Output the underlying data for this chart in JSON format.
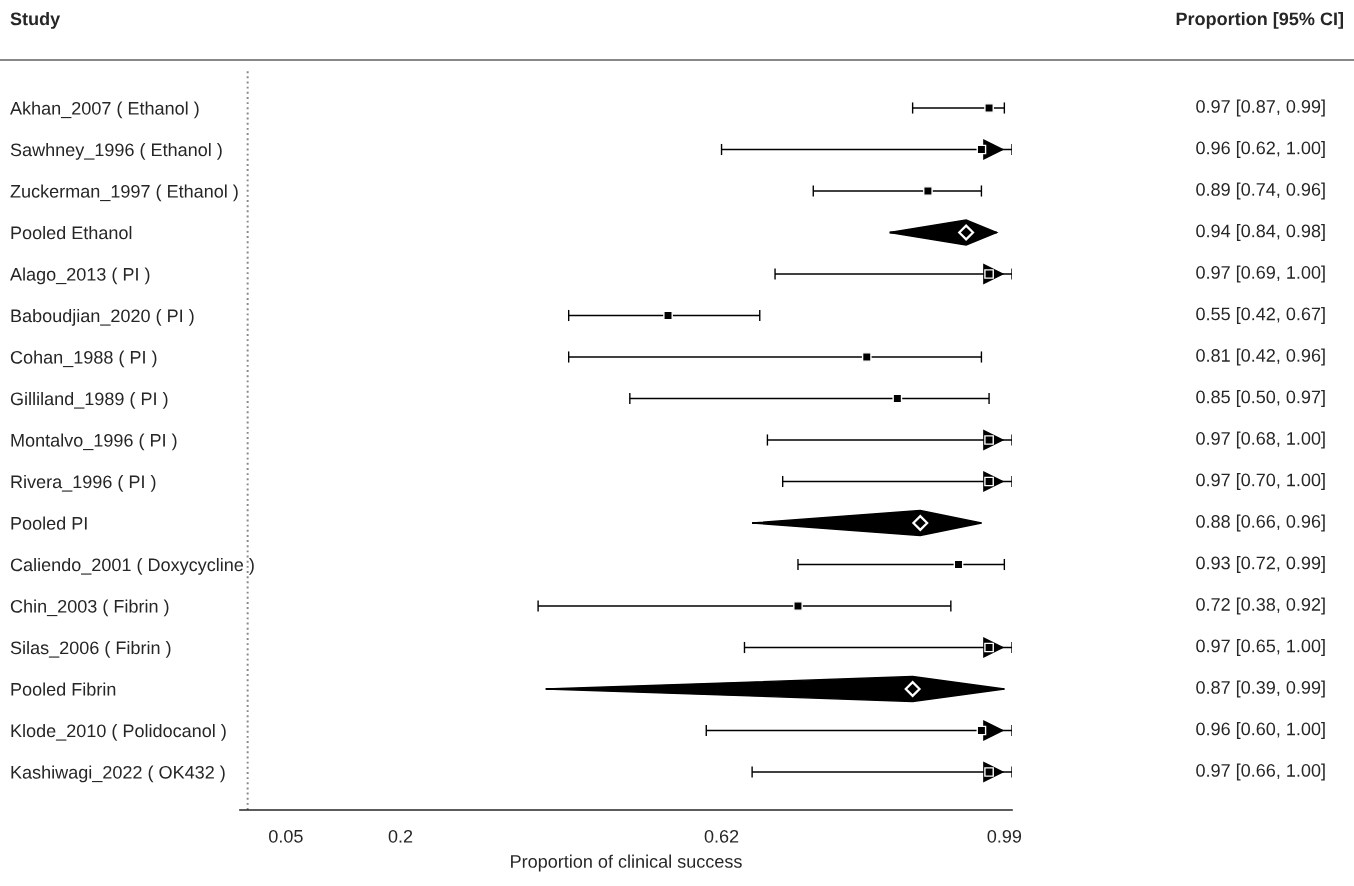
{
  "chart_data": {
    "type": "scatter",
    "annotations": [
      "Study",
      "Proportion [95% CI]"
    ],
    "xlabel": "Proportion of clinical success",
    "categories": [
      "Akhan_2007 ( Ethanol )",
      "Sawhney_1996 ( Ethanol )",
      "Zuckerman_1997 ( Ethanol )",
      "Pooled Ethanol",
      "Alago_2013 ( PI )",
      "Baboudjian_2020 ( PI )",
      "Cohan_1988 ( PI )",
      "Gilliland_1989 ( PI )",
      "Montalvo_1996 ( PI )",
      "Rivera_1996 ( PI )",
      "Pooled PI",
      "Caliendo_2001 ( Doxycycline )",
      "Chin_2003 ( Fibrin )",
      "Silas_2006 ( Fibrin )",
      "Pooled Fibrin",
      "Klode_2010 ( Polidocanol )",
      "Kashiwagi_2022 ( OK432 )"
    ],
    "series": [
      {
        "color": "#000000",
        "marker": "square",
        "values": [
          0.97,
          0.96,
          0.89,
          null,
          0.97,
          0.55,
          0.81,
          0.85,
          0.97,
          0.97,
          null,
          0.93,
          0.72,
          0.97,
          null,
          0.96,
          0.97
        ],
        "errors": [
          [
            0.87,
            0.99
          ],
          [
            0.62,
            1.0
          ],
          [
            0.74,
            0.96
          ],
          null,
          [
            0.69,
            1.0
          ],
          [
            0.42,
            0.67
          ],
          [
            0.42,
            0.96
          ],
          [
            0.5,
            0.97
          ],
          [
            0.68,
            1.0
          ],
          [
            0.7,
            1.0
          ],
          null,
          [
            0.72,
            0.99
          ],
          [
            0.38,
            0.92
          ],
          [
            0.65,
            1.0
          ],
          null,
          [
            0.6,
            1.0
          ],
          [
            0.66,
            1.0
          ]
        ]
      },
      {
        "color": "#000000",
        "marker": "diamond",
        "values": [
          null,
          null,
          null,
          0.94,
          null,
          null,
          null,
          null,
          null,
          null,
          0.88,
          null,
          null,
          null,
          0.87,
          null,
          null
        ],
        "errors": [
          null,
          null,
          null,
          [
            0.84,
            0.98
          ],
          null,
          null,
          null,
          null,
          null,
          null,
          [
            0.66,
            0.96
          ],
          null,
          null,
          null,
          [
            0.39,
            0.99
          ],
          null,
          null
        ]
      }
    ],
    "value_labels": [
      "0.97 [0.87, 0.99]",
      "0.96 [0.62, 1.00]",
      "0.89 [0.74, 0.96]",
      "0.94 [0.84, 0.98]",
      "0.97 [0.69, 1.00]",
      "0.55 [0.42, 0.67]",
      "0.81 [0.42, 0.96]",
      "0.85 [0.50, 0.97]",
      "0.97 [0.68, 1.00]",
      "0.97 [0.70, 1.00]",
      "0.88 [0.66, 0.96]",
      "0.93 [0.72, 0.99]",
      "0.72 [0.38, 0.92]",
      "0.97 [0.65, 1.00]",
      "0.87 [0.39, 0.99]",
      "0.96 [0.60, 1.00]",
      "0.97 [0.66, 1.00]"
    ],
    "xlim": [
      -0.01,
      1.0
    ],
    "xticks": [
      0.05,
      0.2,
      0.62,
      0.99
    ],
    "ref_lines": [
      {
        "axis": "x",
        "value": 0,
        "line_style": "dotted",
        "color": "#888888"
      }
    ],
    "orientation": "horizontal",
    "grid": false,
    "legend": false
  }
}
